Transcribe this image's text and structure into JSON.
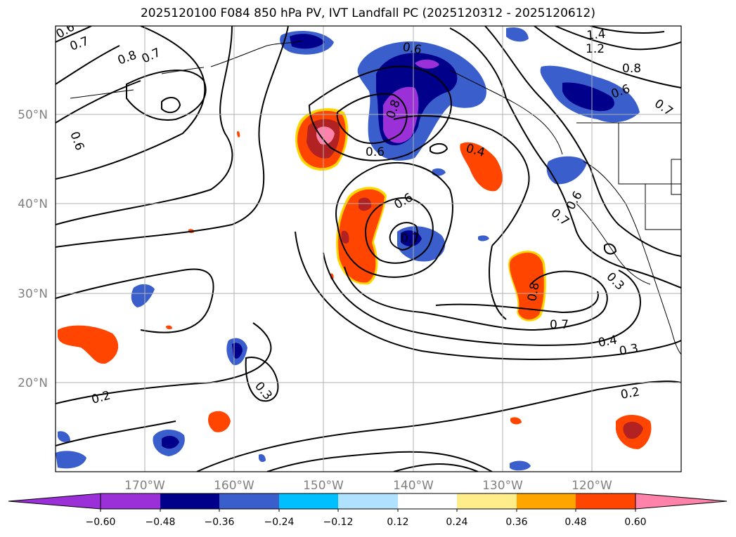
{
  "title": "2025120100 F084 850 hPa PV, IVT Landfall PC (2025120312 - 2025120612)",
  "lat_labels": [
    "50°N",
    "40°N",
    "30°N",
    "20°N"
  ],
  "lon_labels": [
    "170°W",
    "160°W",
    "150°W",
    "140°W",
    "130°W",
    "120°W"
  ],
  "contour_labels": [
    "0.6",
    "0.7",
    "0.8",
    "0.7",
    "0.6",
    "0.8",
    "0.6",
    "0.6",
    "0.4",
    "0.6",
    "0.7",
    "0.8",
    "0.7",
    "0.4",
    "0.3",
    "0.2",
    "0.3",
    "0.2",
    "1.4",
    "1.2",
    "0.8",
    "0.6",
    "0.7",
    "0.7",
    "0.6",
    "0.3"
  ],
  "colorbar": {
    "ticks": [
      "−0.60",
      "−0.48",
      "−0.36",
      "−0.24",
      "−0.12",
      "0.12",
      "0.24",
      "0.36",
      "0.48",
      "0.60"
    ],
    "colors": [
      "#9b30d9",
      "#00008b",
      "#3a5fcd",
      "#00bfff",
      "#b0e2ff",
      "#ffffff",
      "#ffec8b",
      "#ffa500",
      "#ff4500",
      "#b22222",
      "#ff82ab",
      "#ff82ab"
    ],
    "low_color": "#9b30d9",
    "high_color": "#ff82ab"
  }
}
